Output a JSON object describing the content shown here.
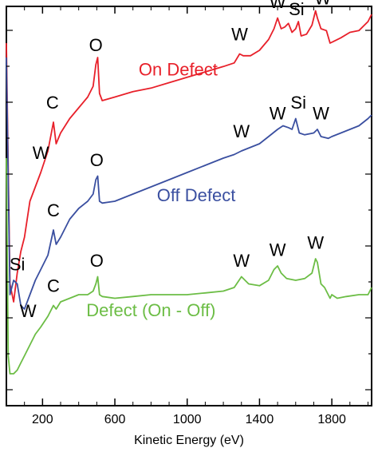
{
  "chart_data": {
    "type": "line",
    "title": "",
    "xlabel": "Kinetic Energy (eV)",
    "ylabel": "",
    "xlim": [
      0,
      2020
    ],
    "ylim": [
      0,
      100
    ],
    "grid": false,
    "x_ticks": [
      200,
      600,
      1000,
      1400,
      1800
    ],
    "series": [
      {
        "name": "On Defect",
        "color": "#e8202a",
        "x": [
          0,
          20,
          40,
          60,
          80,
          100,
          130,
          160,
          190,
          230,
          260,
          275,
          300,
          350,
          400,
          450,
          480,
          495,
          505,
          515,
          530,
          600,
          700,
          800,
          900,
          1000,
          1100,
          1200,
          1260,
          1290,
          1310,
          1350,
          1400,
          1450,
          1480,
          1500,
          1520,
          1540,
          1560,
          1580,
          1600,
          1615,
          1630,
          1660,
          1690,
          1710,
          1720,
          1740,
          1770,
          1790,
          1810,
          1850,
          1900,
          1950,
          2000,
          2020
        ],
        "values": [
          92,
          25,
          20,
          28,
          34,
          38,
          48,
          52,
          56,
          62,
          70,
          64,
          67,
          71,
          74,
          77,
          80,
          86,
          88,
          78,
          76,
          77,
          78.5,
          79.5,
          81,
          82.5,
          84,
          85.5,
          86.5,
          89,
          88.5,
          88.5,
          90,
          93,
          96,
          99,
          96,
          96.5,
          97.5,
          95,
          96,
          98,
          94,
          94.5,
          97,
          101,
          99,
          96,
          95.5,
          92,
          92.5,
          93.5,
          95,
          95.5,
          98,
          100
        ]
      },
      {
        "name": "Off Defect",
        "color": "#3a4fa0",
        "x": [
          0,
          20,
          40,
          60,
          80,
          100,
          130,
          160,
          190,
          230,
          260,
          275,
          300,
          350,
          400,
          450,
          480,
          495,
          505,
          515,
          530,
          600,
          700,
          800,
          900,
          1000,
          1100,
          1200,
          1260,
          1300,
          1350,
          1400,
          1450,
          1500,
          1530,
          1560,
          1580,
          1600,
          1620,
          1650,
          1700,
          1720,
          1740,
          1780,
          1800,
          1850,
          1900,
          1950,
          2000,
          2020
        ],
        "values": [
          88,
          22,
          26,
          25,
          19,
          18,
          22,
          26,
          29,
          33,
          40,
          36,
          38,
          43,
          46,
          48,
          50,
          54,
          55,
          48,
          47.5,
          48,
          50,
          52,
          54,
          56,
          58,
          60,
          61,
          62,
          63,
          64,
          66,
          68,
          69,
          68.5,
          68,
          71,
          67,
          66.5,
          67,
          68,
          66,
          65.5,
          66,
          67,
          68,
          69,
          71,
          72
        ]
      },
      {
        "name": "Defect (On - Off)",
        "color": "#6cbd45",
        "x": [
          0,
          10,
          20,
          40,
          60,
          80,
          100,
          130,
          160,
          190,
          230,
          260,
          275,
          300,
          350,
          400,
          450,
          480,
          495,
          505,
          515,
          530,
          600,
          700,
          800,
          900,
          1000,
          1100,
          1200,
          1260,
          1300,
          1340,
          1400,
          1450,
          1480,
          1500,
          1520,
          1550,
          1600,
          1650,
          1690,
          1710,
          1720,
          1740,
          1760,
          1790,
          1800,
          1830,
          1880,
          1950,
          2000,
          2020
        ],
        "values": [
          60,
          5,
          0,
          0,
          1,
          3,
          5,
          8,
          11,
          13,
          16,
          19,
          18,
          20,
          21,
          22,
          22,
          23,
          25,
          27,
          22,
          21.5,
          21,
          21.5,
          22,
          22,
          22,
          22.5,
          23,
          24,
          27,
          25,
          24.5,
          26,
          29,
          30,
          28,
          26.5,
          26,
          26.5,
          28,
          32,
          31,
          25,
          24,
          21,
          22,
          21,
          21.5,
          22,
          22,
          24
        ]
      }
    ],
    "annotations": {
      "on_defect": [
        {
          "text": "W",
          "x": 190,
          "y": 58
        },
        {
          "text": "C",
          "x": 255,
          "y": 72
        },
        {
          "text": "O",
          "x": 495,
          "y": 88
        },
        {
          "text": "W",
          "x": 1290,
          "y": 91
        },
        {
          "text": "W",
          "x": 1500,
          "y": 100
        },
        {
          "text": "Si",
          "x": 1605,
          "y": 98
        },
        {
          "text": "W",
          "x": 1750,
          "y": 101
        }
      ],
      "off_defect": [
        {
          "text": "Si",
          "x": 60,
          "y": 27
        },
        {
          "text": "C",
          "x": 260,
          "y": 42
        },
        {
          "text": "O",
          "x": 500,
          "y": 56
        },
        {
          "text": "W",
          "x": 1300,
          "y": 64
        },
        {
          "text": "W",
          "x": 1500,
          "y": 69
        },
        {
          "text": "Si",
          "x": 1615,
          "y": 72
        },
        {
          "text": "W",
          "x": 1740,
          "y": 69
        }
      ],
      "difference": [
        {
          "text": "W",
          "x": 120,
          "y": 14
        },
        {
          "text": "C",
          "x": 260,
          "y": 21
        },
        {
          "text": "O",
          "x": 500,
          "y": 28
        },
        {
          "text": "W",
          "x": 1300,
          "y": 28
        },
        {
          "text": "W",
          "x": 1500,
          "y": 31
        },
        {
          "text": "W",
          "x": 1710,
          "y": 33
        }
      ]
    },
    "series_labels": [
      {
        "text": "On Defect",
        "color": "#e8202a",
        "x": 950,
        "y": 83
      },
      {
        "text": "Off Defect",
        "color": "#3a4fa0",
        "x": 1050,
        "y": 48
      },
      {
        "text": "Defect (On - Off)",
        "color": "#6cbd45",
        "x": 800,
        "y": 16
      }
    ]
  }
}
